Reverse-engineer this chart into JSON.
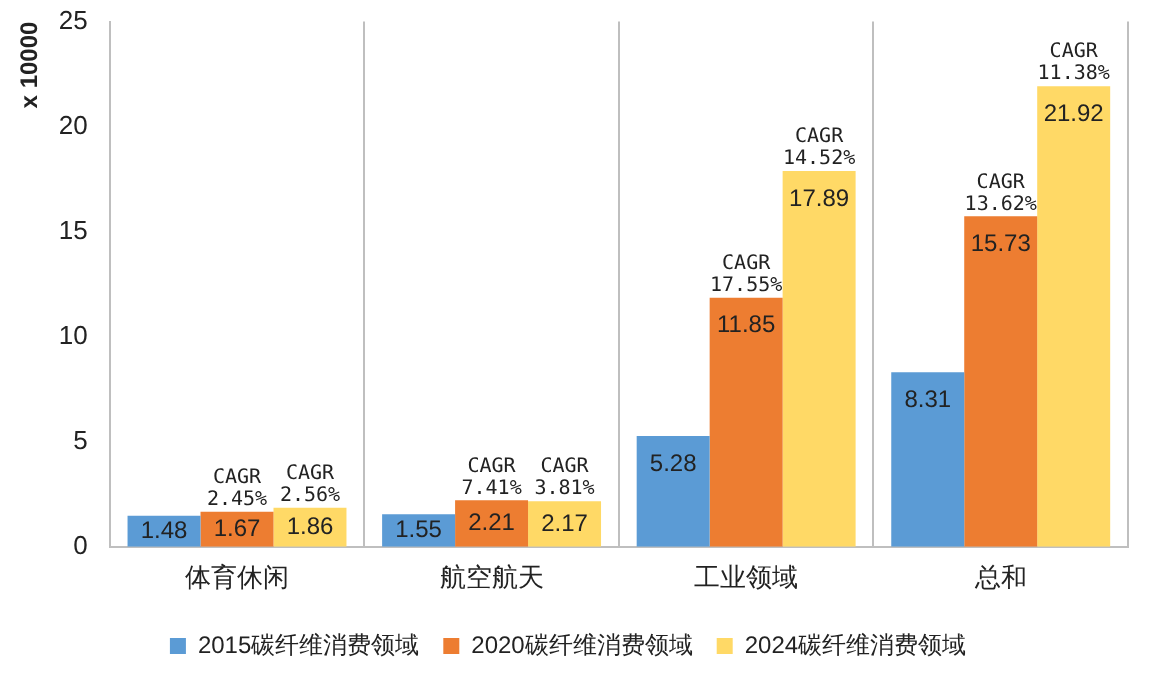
{
  "chart_data": {
    "type": "bar",
    "ylabel": "x 10000",
    "categories": [
      "体育休闲",
      "航空航天",
      "工业领域",
      "总和"
    ],
    "series": [
      {
        "name": "2015碳纤维消费领域",
        "color": "#5b9bd5",
        "values": [
          1.48,
          1.55,
          5.28,
          8.31
        ]
      },
      {
        "name": "2020碳纤维消费领域",
        "color": "#ed7d31",
        "values": [
          1.67,
          2.21,
          11.85,
          15.73
        ]
      },
      {
        "name": "2024碳纤维消费领域",
        "color": "#ffd966",
        "values": [
          1.86,
          2.17,
          17.89,
          21.92
        ]
      }
    ],
    "ylim": [
      0,
      25
    ],
    "yticks": [
      0,
      5,
      10,
      15,
      20,
      25
    ],
    "grid": "x",
    "legend": "bottom",
    "data_labels": true,
    "annotations": [
      "CAGR",
      "2.45%",
      "CAGR",
      "2.56%",
      "CAGR",
      "7.41%",
      "CAGR",
      "3.81%",
      "CAGR",
      "17.55%",
      "CAGR",
      "14.52%",
      "CAGR",
      "13.62%",
      "CAGR",
      "11.38%"
    ]
  }
}
